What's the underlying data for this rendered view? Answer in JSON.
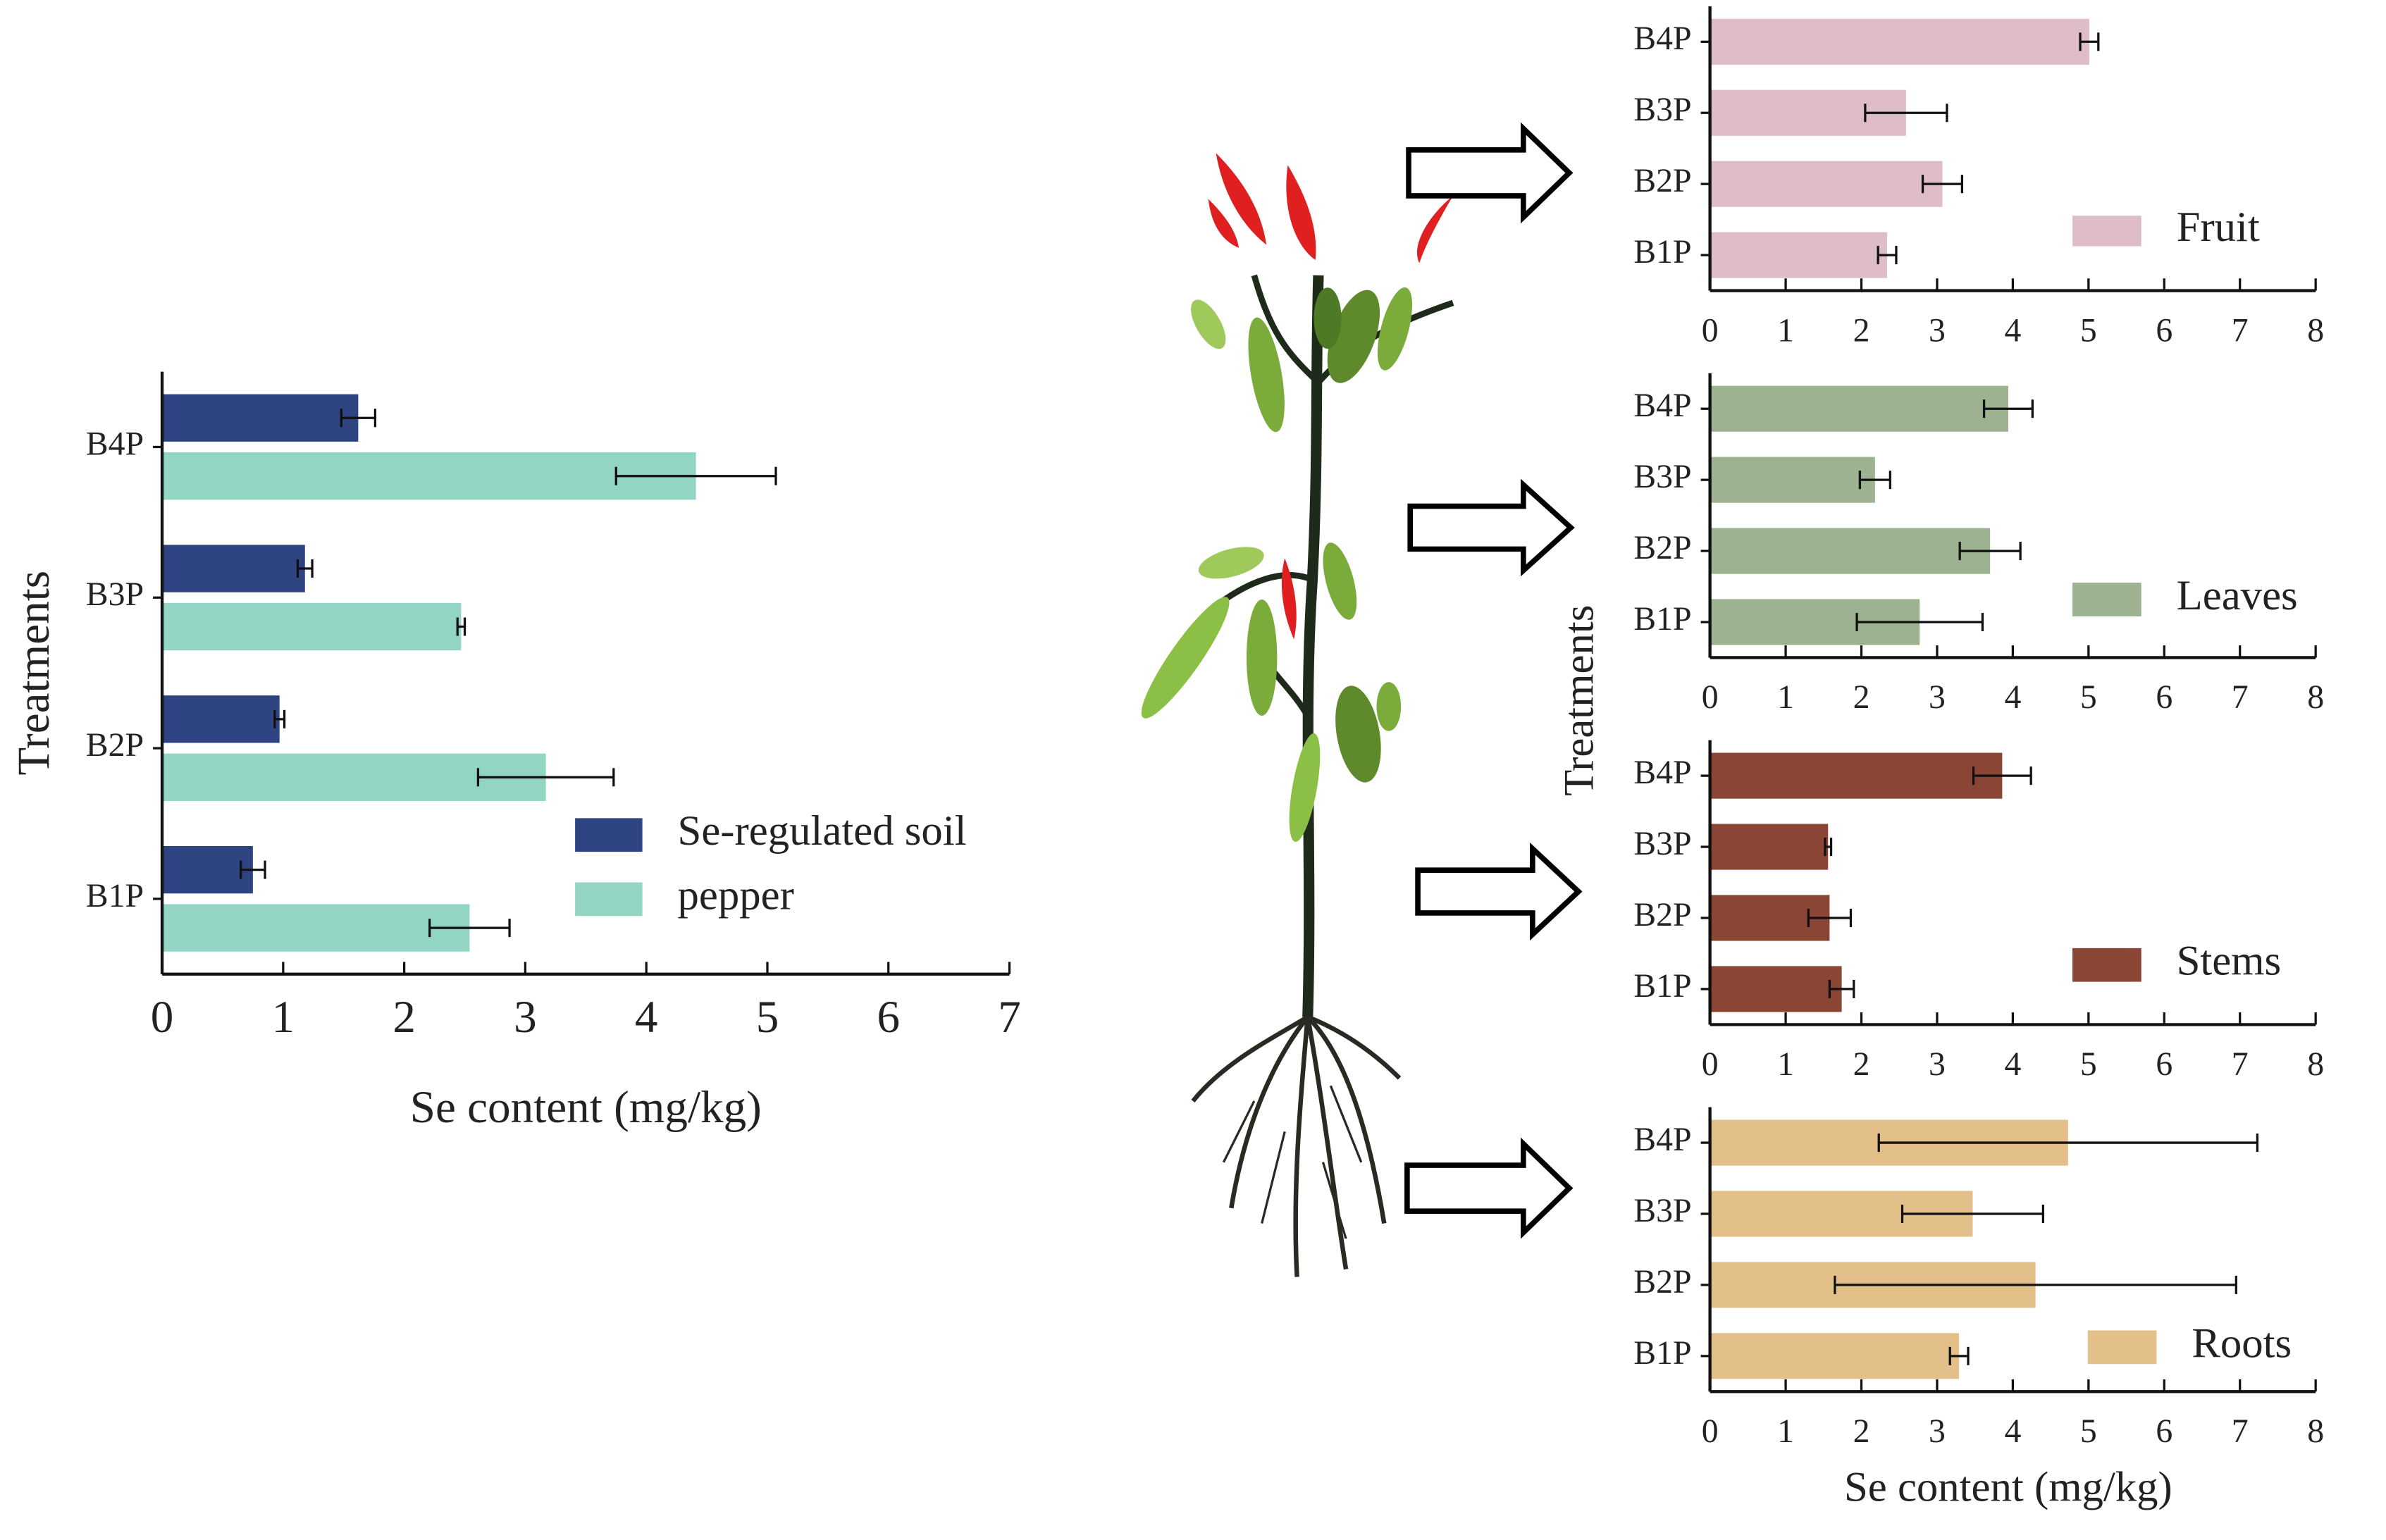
{
  "chart_data": [
    {
      "type": "bar",
      "orientation": "horizontal",
      "categories": [
        "B1P",
        "B2P",
        "B3P",
        "B4P"
      ],
      "series": [
        {
          "name": "Se-regulated soil",
          "color": "#2e4482",
          "values": [
            0.75,
            0.97,
            1.18,
            1.62
          ],
          "errors": [
            0.1,
            0.04,
            0.06,
            0.14
          ]
        },
        {
          "name": "pepper",
          "color": "#93d5c5",
          "values": [
            2.54,
            3.17,
            2.47,
            4.41
          ],
          "errors": [
            0.33,
            0.56,
            0.03,
            0.66
          ]
        }
      ],
      "xlim": [
        0,
        7
      ],
      "xticks": [
        0,
        1,
        2,
        3,
        4,
        5,
        6,
        7
      ],
      "xlabel": "Se content (mg/kg)",
      "ylabel": "Treatments"
    },
    {
      "type": "bar",
      "orientation": "horizontal",
      "categories": [
        "B1P",
        "B2P",
        "B3P",
        "B4P"
      ],
      "series": [
        {
          "name": "Fruit",
          "color": "#dfbdc8",
          "values": [
            2.34,
            3.07,
            2.59,
            5.01
          ],
          "errors": [
            0.12,
            0.26,
            0.54,
            0.12
          ]
        }
      ],
      "xlim": [
        0,
        8
      ],
      "xticks": [
        0,
        1,
        2,
        3,
        4,
        5,
        6,
        7,
        8
      ]
    },
    {
      "type": "bar",
      "orientation": "horizontal",
      "categories": [
        "B1P",
        "B2P",
        "B3P",
        "B4P"
      ],
      "series": [
        {
          "name": "Leaves",
          "color": "#9db290",
          "values": [
            2.77,
            3.7,
            2.18,
            3.94
          ],
          "errors": [
            0.83,
            0.4,
            0.2,
            0.32
          ]
        }
      ],
      "xlim": [
        0,
        8
      ],
      "xticks": [
        0,
        1,
        2,
        3,
        4,
        5,
        6,
        7,
        8
      ]
    },
    {
      "type": "bar",
      "orientation": "horizontal",
      "categories": [
        "B1P",
        "B2P",
        "B3P",
        "B4P"
      ],
      "series": [
        {
          "name": "Stems",
          "color": "#8b4535",
          "values": [
            1.74,
            1.58,
            1.56,
            3.86
          ],
          "errors": [
            0.16,
            0.28,
            0.04,
            0.38
          ]
        }
      ],
      "xlim": [
        0,
        8
      ],
      "xticks": [
        0,
        1,
        2,
        3,
        4,
        5,
        6,
        7,
        8
      ]
    },
    {
      "type": "bar",
      "orientation": "horizontal",
      "categories": [
        "B1P",
        "B2P",
        "B3P",
        "B4P"
      ],
      "series": [
        {
          "name": "Roots",
          "color": "#e3c08a",
          "values": [
            3.29,
            4.3,
            3.47,
            4.73
          ],
          "errors": [
            0.12,
            2.65,
            0.93,
            2.5
          ]
        }
      ],
      "xlim": [
        0,
        8
      ],
      "xticks": [
        0,
        1,
        2,
        3,
        4,
        5,
        6,
        7,
        8
      ],
      "xlabel": "Se content (mg/kg)",
      "ylabel": "Treatments"
    }
  ]
}
